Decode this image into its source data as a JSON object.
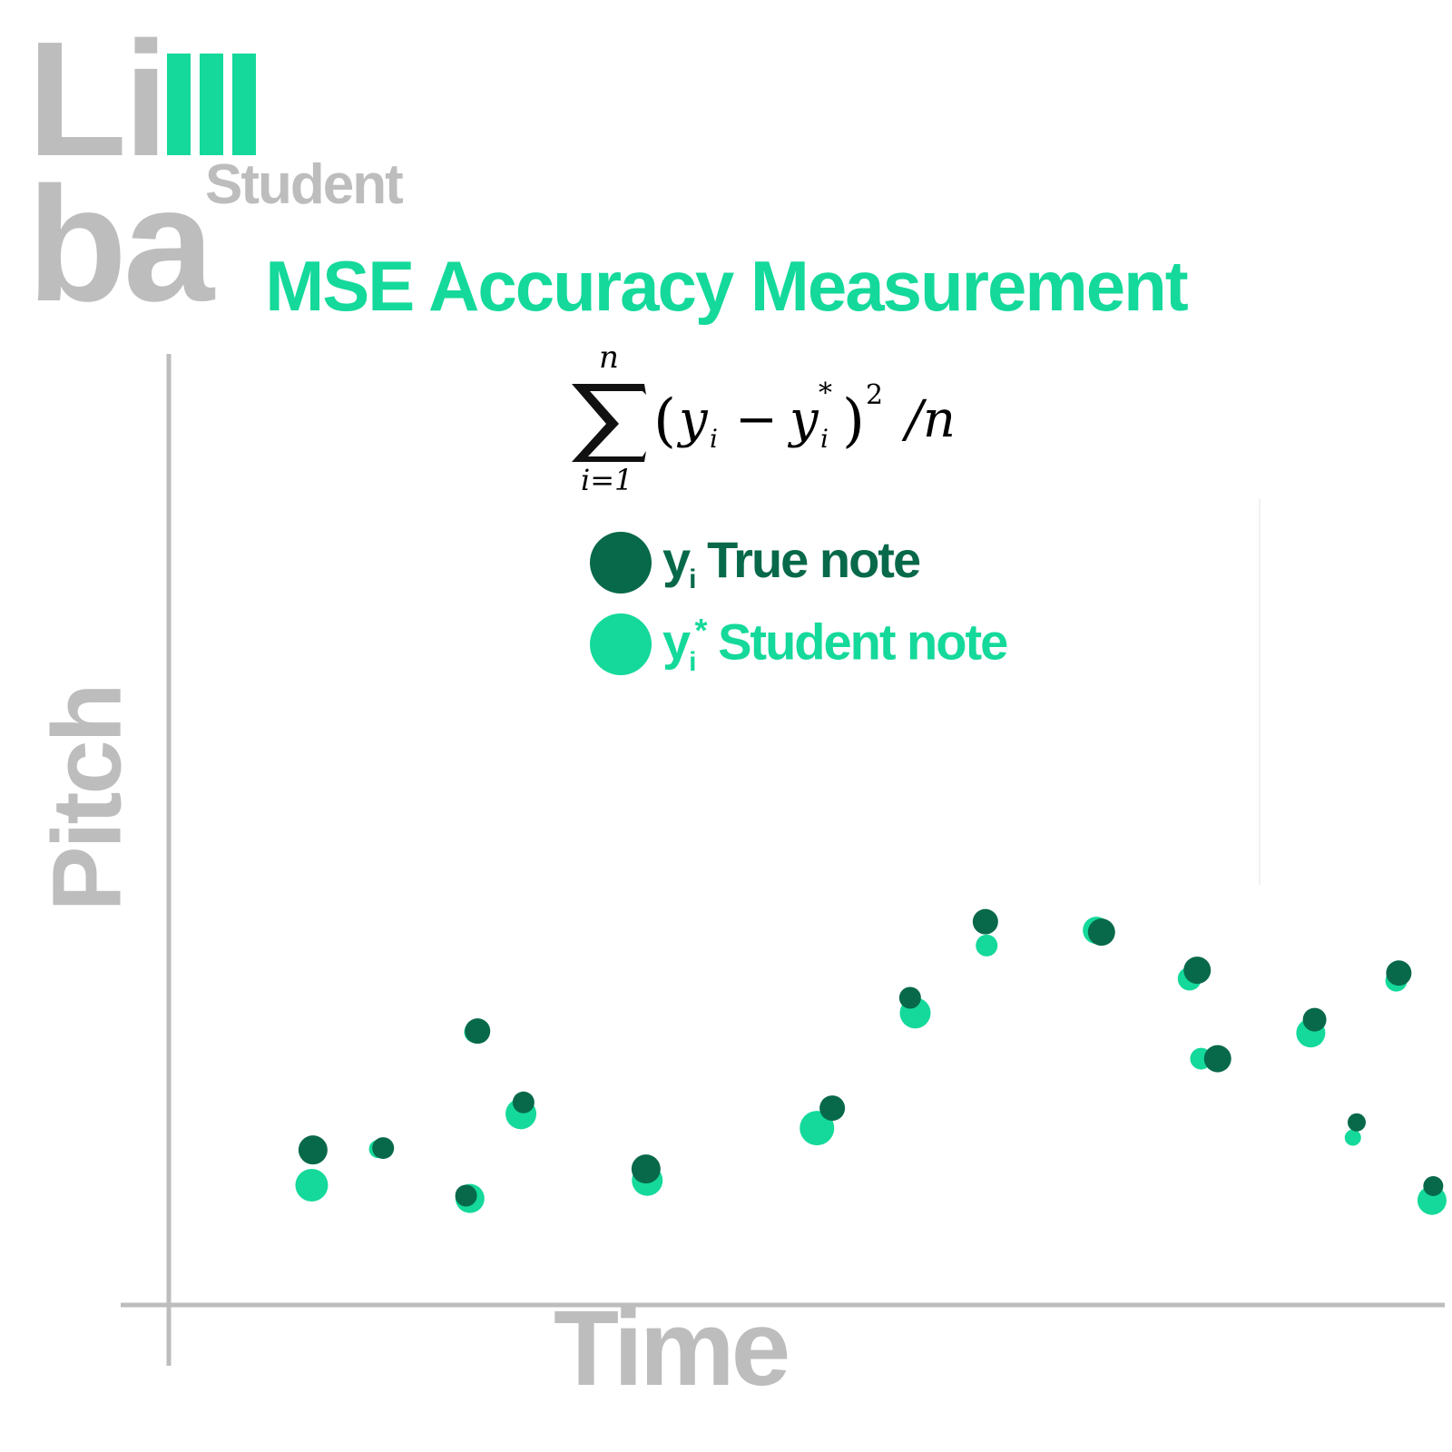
{
  "logo": {
    "word_start": "Li",
    "word_end": "ba",
    "subtitle": "Student"
  },
  "colors": {
    "true_note": "#08694a",
    "student_note": "#14d99a",
    "axis": "#bdbdbd",
    "title": "#14d99a"
  },
  "chart_data": {
    "type": "scatter",
    "title": "MSE Accuracy Measurement",
    "formula": {
      "upper_limit": "n",
      "lower_limit": "i=1",
      "open_paren": "(",
      "y": "y",
      "sub": "i",
      "minus": "−",
      "star": "*",
      "close_paren": ")",
      "power": "2",
      "divide": "/n"
    },
    "xlabel": "Time",
    "ylabel": "Pitch",
    "legend": {
      "true_note": {
        "symbol": "y",
        "sub": "i",
        "sup": "",
        "label": "True note"
      },
      "student_note": {
        "symbol": "y",
        "sub": "i",
        "sup": "*",
        "label": "Student note"
      }
    },
    "xlim": [
      0,
      100
    ],
    "ylim": [
      0,
      100
    ],
    "grid": false,
    "series": [
      {
        "name": "True note",
        "points": [
          {
            "x": 11.3,
            "y": 16.3,
            "s": 16
          },
          {
            "x": 16.8,
            "y": 16.5,
            "s": 12
          },
          {
            "x": 23.3,
            "y": 11.5,
            "s": 12
          },
          {
            "x": 24.2,
            "y": 28.8,
            "s": 14
          },
          {
            "x": 27.8,
            "y": 21.3,
            "s": 12
          },
          {
            "x": 37.4,
            "y": 14.3,
            "s": 16
          },
          {
            "x": 52.0,
            "y": 20.7,
            "s": 14
          },
          {
            "x": 58.1,
            "y": 32.3,
            "s": 12
          },
          {
            "x": 64.0,
            "y": 40.3,
            "s": 14
          },
          {
            "x": 73.1,
            "y": 39.2,
            "s": 15
          },
          {
            "x": 80.6,
            "y": 35.2,
            "s": 15
          },
          {
            "x": 82.2,
            "y": 25.9,
            "s": 15
          },
          {
            "x": 89.8,
            "y": 30.0,
            "s": 13
          },
          {
            "x": 93.1,
            "y": 19.2,
            "s": 10
          },
          {
            "x": 96.4,
            "y": 34.9,
            "s": 14
          },
          {
            "x": 99.1,
            "y": 12.5,
            "s": 11
          }
        ]
      },
      {
        "name": "Student note",
        "points": [
          {
            "x": 11.2,
            "y": 12.6,
            "s": 18
          },
          {
            "x": 16.4,
            "y": 16.4,
            "s": 10
          },
          {
            "x": 23.6,
            "y": 11.2,
            "s": 16
          },
          {
            "x": 24.0,
            "y": 28.7,
            "s": 12
          },
          {
            "x": 27.6,
            "y": 20.1,
            "s": 17
          },
          {
            "x": 37.5,
            "y": 13.1,
            "s": 17
          },
          {
            "x": 50.8,
            "y": 18.6,
            "s": 19
          },
          {
            "x": 58.5,
            "y": 30.7,
            "s": 17
          },
          {
            "x": 64.1,
            "y": 37.8,
            "s": 12
          },
          {
            "x": 72.7,
            "y": 39.4,
            "s": 15
          },
          {
            "x": 80.0,
            "y": 34.3,
            "s": 13
          },
          {
            "x": 80.9,
            "y": 25.9,
            "s": 12
          },
          {
            "x": 89.5,
            "y": 28.6,
            "s": 16
          },
          {
            "x": 92.8,
            "y": 17.6,
            "s": 9
          },
          {
            "x": 96.2,
            "y": 34.1,
            "s": 12
          },
          {
            "x": 99.0,
            "y": 11.0,
            "s": 16
          }
        ]
      }
    ]
  }
}
